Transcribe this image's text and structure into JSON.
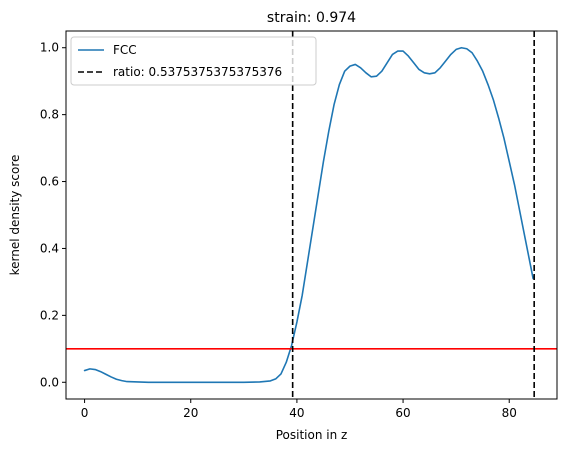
{
  "chart_data": {
    "type": "line",
    "title": "strain: 0.974",
    "xlabel": "Position in z",
    "ylabel": "kernel density score",
    "xlim": [
      -3.5,
      89
    ],
    "ylim": [
      -0.05,
      1.05
    ],
    "xticks": [
      0,
      20,
      40,
      60,
      80
    ],
    "yticks": [
      0.0,
      0.2,
      0.4,
      0.6,
      0.8,
      1.0
    ],
    "xtick_labels": [
      "0",
      "20",
      "40",
      "60",
      "80"
    ],
    "ytick_labels": [
      "0.0",
      "0.2",
      "0.4",
      "0.6",
      "0.8",
      "1.0"
    ],
    "grid": false,
    "legend_position": "top-left",
    "series": [
      {
        "name": "FCC",
        "color": "#1f77b4",
        "x": [
          0,
          1,
          2,
          3,
          4,
          5,
          6,
          7,
          8,
          10,
          12,
          15,
          20,
          25,
          30,
          33,
          35,
          36,
          37,
          38,
          39,
          40,
          41,
          42,
          43,
          44,
          45,
          46,
          47,
          48,
          49,
          50,
          51,
          52,
          53,
          54,
          55,
          56,
          57,
          58,
          59,
          60,
          61,
          62,
          63,
          64,
          65,
          66,
          67,
          68,
          69,
          70,
          71,
          72,
          73,
          74,
          75,
          76,
          77,
          78,
          79,
          80,
          81,
          82,
          83,
          84,
          84.5
        ],
        "y": [
          0.035,
          0.04,
          0.038,
          0.032,
          0.024,
          0.016,
          0.009,
          0.005,
          0.002,
          0.001,
          0.0,
          0.0,
          0.0,
          0.0,
          0.0,
          0.001,
          0.004,
          0.01,
          0.025,
          0.06,
          0.11,
          0.18,
          0.26,
          0.36,
          0.46,
          0.56,
          0.66,
          0.75,
          0.83,
          0.89,
          0.93,
          0.945,
          0.95,
          0.94,
          0.925,
          0.913,
          0.915,
          0.93,
          0.955,
          0.98,
          0.99,
          0.99,
          0.975,
          0.955,
          0.935,
          0.925,
          0.922,
          0.925,
          0.94,
          0.96,
          0.98,
          0.995,
          1.0,
          0.997,
          0.985,
          0.96,
          0.93,
          0.89,
          0.845,
          0.79,
          0.73,
          0.66,
          0.59,
          0.51,
          0.43,
          0.35,
          0.31
        ]
      }
    ],
    "vlines": [
      {
        "x": 39.2,
        "style": "dashed",
        "color": "#000000",
        "label": "ratio: 0.5375375375375376"
      },
      {
        "x": 84.7,
        "style": "dashed",
        "color": "#000000"
      }
    ],
    "hlines": [
      {
        "y": 0.1,
        "color": "#ff0000"
      }
    ],
    "legend": [
      {
        "label": "FCC",
        "style": "solid",
        "color": "#1f77b4"
      },
      {
        "label": "ratio: 0.5375375375375376",
        "style": "dashed",
        "color": "#000000"
      }
    ]
  }
}
